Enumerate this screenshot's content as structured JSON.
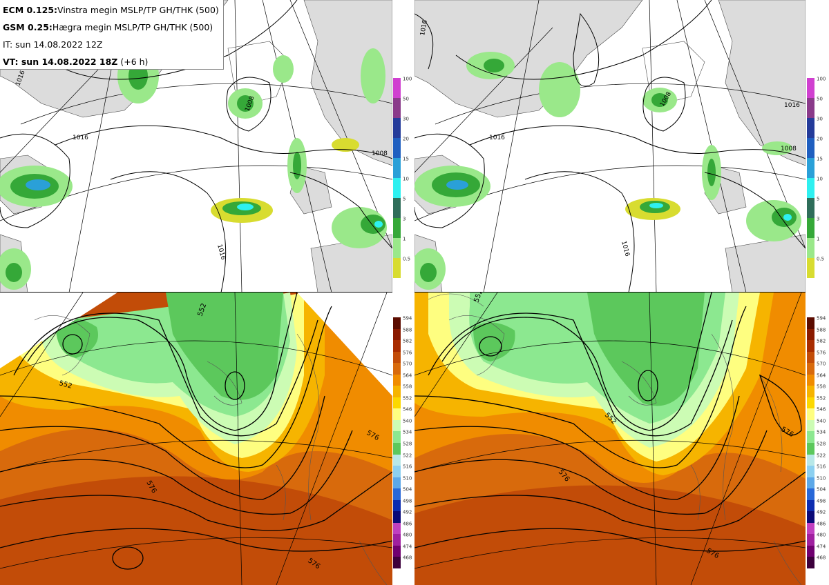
{
  "header": {
    "line1_model": "ECM 0.125:",
    "line1_text": "Vinstra megin MSLP/TP GH/THK (500)",
    "line2_model": "GSM 0.25:",
    "line2_text": "Hægra megin MSLP/TP GH/THK (500)",
    "line3": "IT: sun 14.08.2022 12Z",
    "line4_bold": "VT: sun 14.08.2022 18Z",
    "line4_suffix": "(+6 h)"
  },
  "precip_colorbar": {
    "levels": [
      "100",
      "50",
      "30",
      "20",
      "15",
      "10",
      "5",
      "3",
      "1",
      "0.5"
    ],
    "colors": [
      "#d040d0",
      "#8a3a8a",
      "#243b9a",
      "#1f5fc0",
      "#2aa0d8",
      "#2ef0f0",
      "#2f6e5a",
      "#35a838",
      "#9ae88a",
      "#d8dc30"
    ]
  },
  "thickness_colorbar": {
    "levels": [
      "594",
      "588",
      "582",
      "576",
      "570",
      "564",
      "558",
      "552",
      "546",
      "540",
      "534",
      "528",
      "522",
      "516",
      "510",
      "504",
      "498",
      "492",
      "486",
      "480",
      "474",
      "468"
    ],
    "colors": [
      "#5c0c00",
      "#8a1a00",
      "#a82c00",
      "#c24c08",
      "#d86a0c",
      "#f08c00",
      "#f6b400",
      "#fcd800",
      "#fefe80",
      "#ccfcb4",
      "#8ce890",
      "#5cc85c",
      "#b8e8e8",
      "#8cd0f0",
      "#5ca8e8",
      "#2868d8",
      "#0c2cb0",
      "#0a0a78",
      "#c040c0",
      "#a020a0",
      "#700070",
      "#3c003c"
    ]
  },
  "map_labels": {
    "ecm_mslp": [
      "1016",
      "1016",
      "1008",
      "1008",
      "1016"
    ],
    "gsm_mslp": [
      "1016",
      "1016",
      "1008",
      "1016",
      "1016",
      "1008"
    ],
    "ecm_gh": [
      "552",
      "552",
      "576",
      "576",
      "576"
    ],
    "gsm_gh": [
      "552",
      "552",
      "576",
      "576",
      "576"
    ]
  },
  "colors": {
    "land": "#dcdcdc",
    "sea": "#ffffff",
    "contour": "#000000"
  }
}
